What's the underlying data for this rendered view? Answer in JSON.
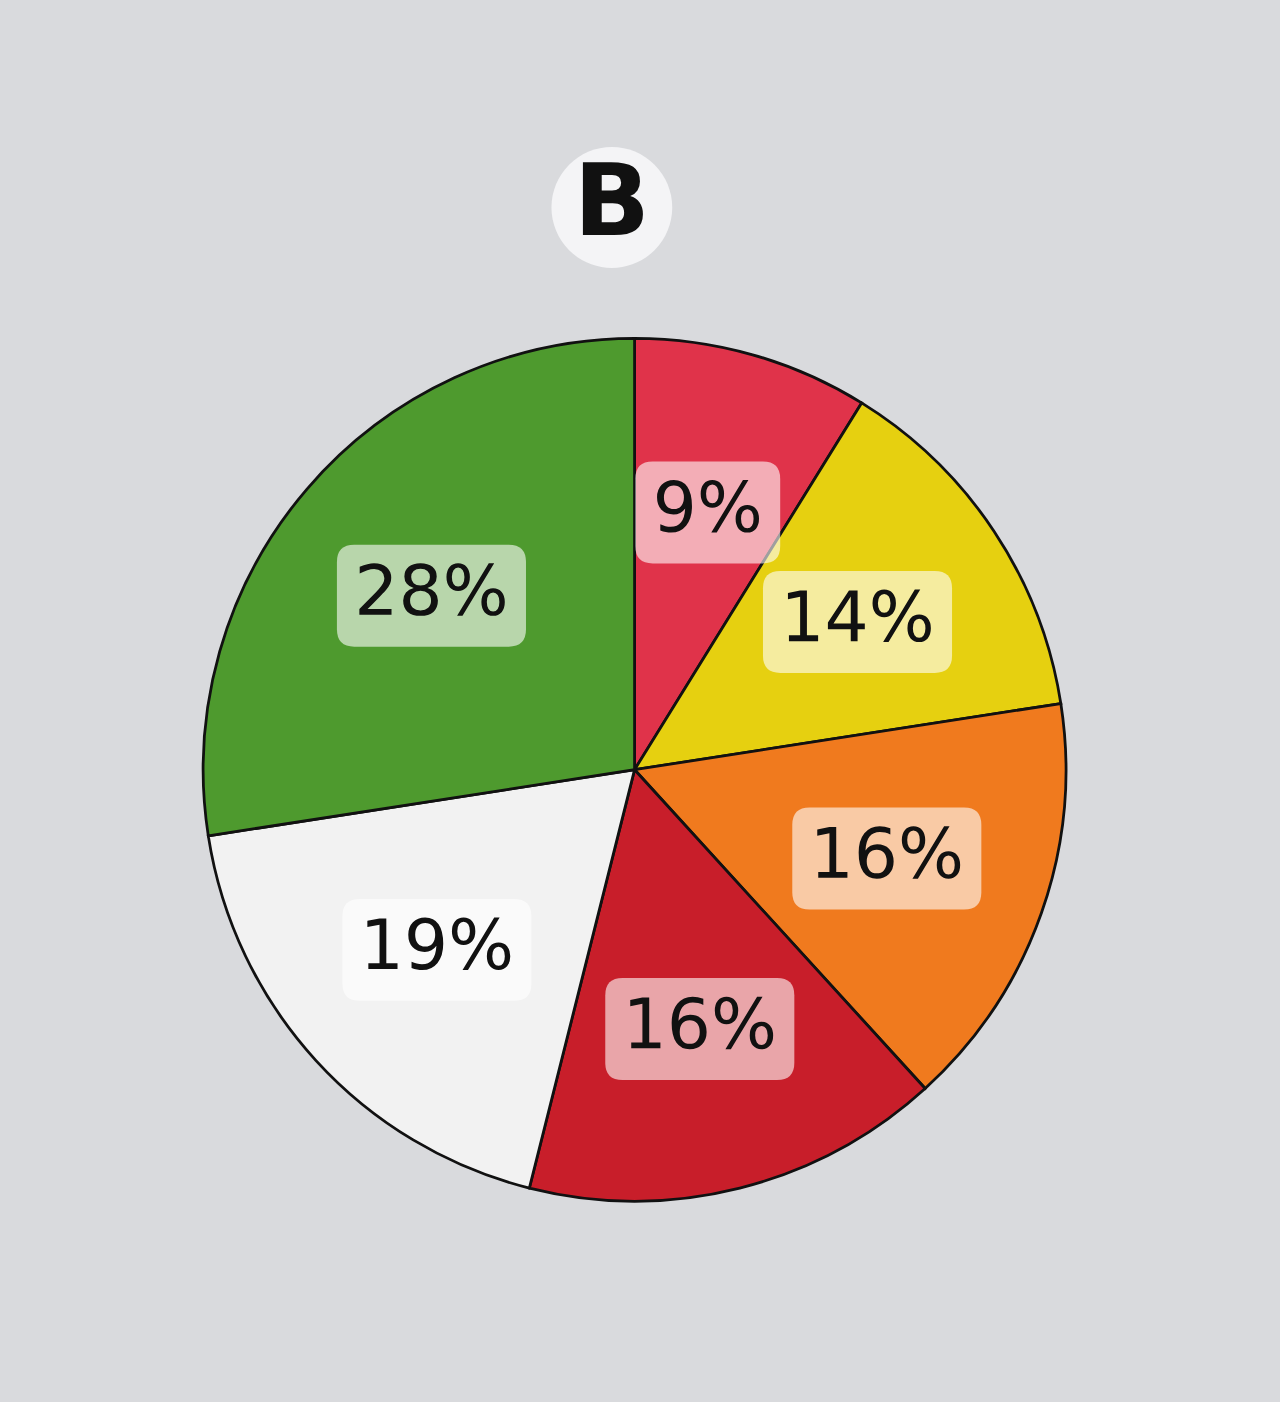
{
  "chart_data": {
    "type": "pie",
    "title": "B",
    "categories": [
      null,
      null,
      null,
      null,
      null,
      null
    ],
    "values": [
      9,
      14,
      16,
      16,
      19,
      28
    ],
    "colors": [
      "#e0334a",
      "#e6d010",
      "#f07a1e",
      "#c81e2a",
      "#f2f2f2",
      "#4e9a2e"
    ],
    "value_labels": [
      "9%",
      "14%",
      "16%",
      "16%",
      "19%",
      "28%"
    ],
    "legend": false
  }
}
